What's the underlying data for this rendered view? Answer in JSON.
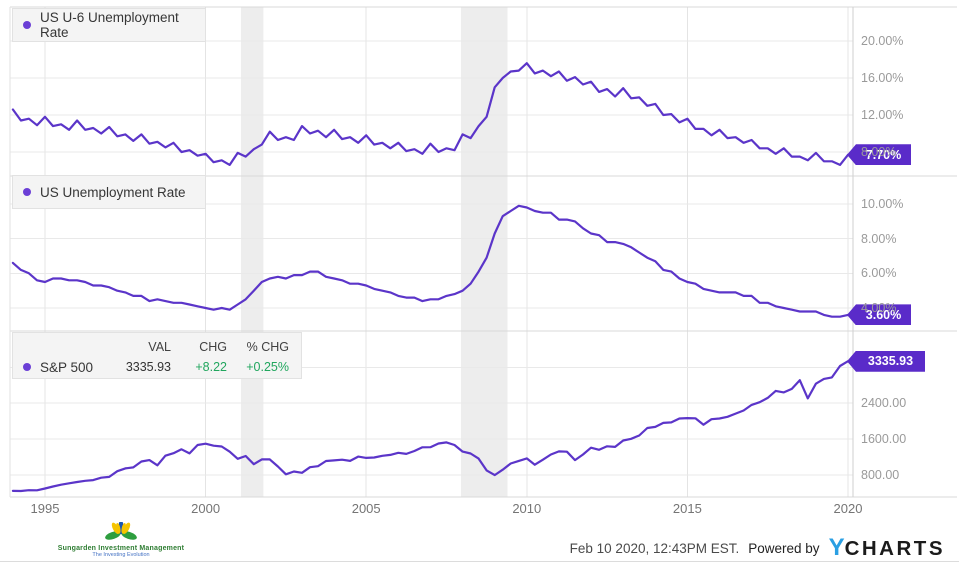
{
  "colors": {
    "line": "#5b35c9",
    "legend_dot": "#6b3fd6",
    "badge": "#5a2bc9",
    "positive_green": "#21a65e",
    "recession_band": "#ededed",
    "grid_h": "#e9e9e9",
    "grid_v": "#e4e4e4",
    "panel_border": "#d9d9d9",
    "axis_line": "#cfcfcf",
    "ycharts_blue": "#2a9fe3"
  },
  "chart_data": {
    "type": "line",
    "x_start_year": 1994,
    "points_per_year": 4,
    "x_ticks": [
      {
        "year": 1995,
        "label": "1995"
      },
      {
        "year": 2000,
        "label": "2000"
      },
      {
        "year": 2005,
        "label": "2005"
      },
      {
        "year": 2010,
        "label": "2010"
      },
      {
        "year": 2015,
        "label": "2015"
      },
      {
        "year": 2020,
        "label": "2020"
      }
    ],
    "recessions": [
      {
        "start": 2001.1,
        "end": 2001.8
      },
      {
        "start": 2007.95,
        "end": 2009.4
      }
    ],
    "panels": [
      {
        "name": "us-u6-unemployment-rate",
        "legend_label": "US U-6 Unemployment Rate",
        "unit": "%",
        "grid_values": [
          20,
          16,
          12,
          8
        ],
        "y_ticks": [
          {
            "v": 20,
            "label": "20.00%"
          },
          {
            "v": 16,
            "label": "16.00%"
          },
          {
            "v": 12,
            "label": "12.00%"
          },
          {
            "v": 8,
            "label": "8.00%"
          }
        ],
        "last_value_label": "7.70%",
        "series": [
          12.6,
          11.4,
          11.6,
          10.9,
          11.8,
          10.8,
          11.0,
          10.4,
          11.4,
          10.4,
          10.6,
          10.0,
          10.7,
          9.7,
          9.9,
          9.2,
          9.9,
          8.9,
          9.1,
          8.5,
          9.0,
          8.0,
          8.2,
          7.6,
          7.8,
          6.9,
          7.1,
          6.6,
          7.9,
          7.5,
          8.3,
          8.8,
          10.2,
          9.3,
          9.6,
          9.3,
          10.8,
          10.0,
          10.3,
          9.6,
          10.4,
          9.4,
          9.6,
          9.0,
          9.8,
          8.8,
          9.0,
          8.4,
          9.0,
          8.1,
          8.3,
          7.8,
          8.9,
          8.0,
          8.4,
          8.2,
          9.9,
          9.5,
          10.8,
          11.8,
          15.0,
          16.0,
          16.7,
          16.8,
          17.6,
          16.5,
          16.8,
          16.2,
          16.7,
          15.7,
          16.1,
          15.3,
          15.6,
          14.5,
          14.8,
          14.0,
          14.9,
          13.8,
          13.9,
          13.0,
          13.2,
          12.0,
          12.1,
          11.2,
          11.6,
          10.5,
          10.5,
          9.8,
          10.4,
          9.5,
          9.6,
          9.0,
          9.3,
          8.4,
          8.4,
          7.8,
          8.4,
          7.5,
          7.5,
          7.1,
          7.9,
          7.0,
          7.0,
          6.6,
          7.7
        ]
      },
      {
        "name": "us-unemployment-rate",
        "legend_label": "US Unemployment Rate",
        "unit": "%",
        "grid_values": [
          10,
          8,
          6,
          4
        ],
        "y_ticks": [
          {
            "v": 10,
            "label": "10.00%"
          },
          {
            "v": 8,
            "label": "8.00%"
          },
          {
            "v": 6,
            "label": "6.00%"
          },
          {
            "v": 4,
            "label": "4.00%"
          }
        ],
        "last_value_label": "3.60%",
        "series": [
          6.6,
          6.2,
          6.0,
          5.6,
          5.5,
          5.7,
          5.7,
          5.6,
          5.6,
          5.5,
          5.3,
          5.3,
          5.2,
          5.0,
          4.9,
          4.7,
          4.7,
          4.4,
          4.5,
          4.4,
          4.3,
          4.3,
          4.2,
          4.1,
          4.0,
          3.9,
          4.0,
          3.9,
          4.2,
          4.5,
          5.0,
          5.5,
          5.7,
          5.8,
          5.7,
          5.9,
          5.9,
          6.1,
          6.1,
          5.8,
          5.7,
          5.6,
          5.4,
          5.4,
          5.3,
          5.1,
          5.0,
          4.9,
          4.7,
          4.6,
          4.6,
          4.4,
          4.5,
          4.5,
          4.7,
          4.8,
          5.0,
          5.4,
          6.1,
          6.9,
          8.3,
          9.3,
          9.6,
          9.9,
          9.8,
          9.6,
          9.5,
          9.5,
          9.1,
          9.1,
          9.0,
          8.6,
          8.3,
          8.2,
          7.8,
          7.8,
          7.7,
          7.5,
          7.2,
          6.9,
          6.7,
          6.2,
          6.1,
          5.7,
          5.5,
          5.4,
          5.1,
          5.0,
          4.9,
          4.9,
          4.9,
          4.7,
          4.7,
          4.3,
          4.3,
          4.1,
          4.0,
          3.9,
          3.8,
          3.8,
          3.8,
          3.6,
          3.5,
          3.5,
          3.6
        ]
      },
      {
        "name": "sp-500",
        "legend_label": "S&P 500",
        "unit": "index",
        "columns": [
          "VAL",
          "CHG",
          "% CHG"
        ],
        "val": "3335.93",
        "chg": "+8.22",
        "pct_chg": "+0.25%",
        "grid_values": [
          3200,
          2400,
          1600,
          800
        ],
        "y_ticks": [
          {
            "v": 2400,
            "label": "2400.00"
          },
          {
            "v": 1600,
            "label": "1600.00"
          },
          {
            "v": 800,
            "label": "800.00"
          }
        ],
        "last_value_label": "3335.93",
        "series": [
          445,
          444,
          462,
          459,
          500,
          544,
          584,
          615,
          645,
          670,
          687,
          740,
          757,
          885,
          947,
          970,
          1100,
          1133,
          1017,
          1229,
          1286,
          1372,
          1282,
          1469,
          1498,
          1454,
          1436,
          1320,
          1160,
          1224,
          1040,
          1148,
          1147,
          989,
          815,
          879,
          848,
          974,
          995,
          1111,
          1126,
          1140,
          1114,
          1211,
          1180,
          1191,
          1228,
          1248,
          1294,
          1270,
          1335,
          1418,
          1420,
          1503,
          1526,
          1468,
          1322,
          1280,
          1166,
          903,
          797,
          919,
          1057,
          1115,
          1169,
          1030,
          1141,
          1257,
          1325,
          1320,
          1131,
          1257,
          1408,
          1362,
          1440,
          1426,
          1569,
          1606,
          1681,
          1848,
          1872,
          1960,
          1972,
          2058,
          2067,
          2063,
          1920,
          2043,
          2059,
          2098,
          2168,
          2238,
          2362,
          2423,
          2519,
          2673,
          2640,
          2718,
          2913,
          2506,
          2834,
          2941,
          2976,
          3230,
          3335.93
        ]
      }
    ]
  },
  "footer": {
    "logo_name": "Sungarden Investment Management",
    "logo_tagline": "The Investing Evolution",
    "timestamp": "Feb 10 2020, 12:43PM EST.",
    "powered_by": "Powered by",
    "wordmark_y": "Y",
    "wordmark_rest": "CHARTS"
  }
}
